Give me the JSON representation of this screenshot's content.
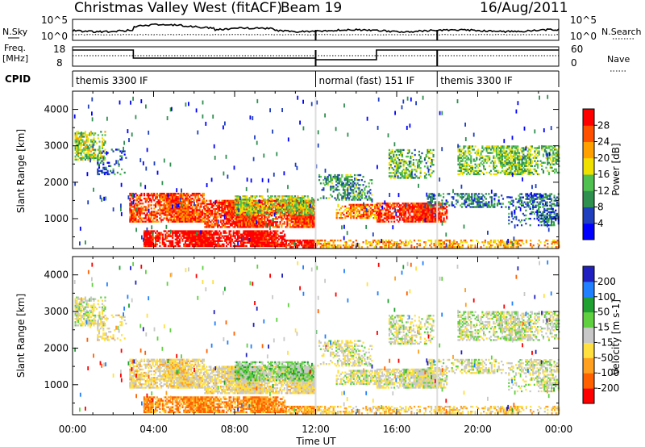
{
  "header": {
    "title": "Christmas Valley West (fitACF)",
    "beam": "Beam 19",
    "date": "16/Aug/2011"
  },
  "side_labels": {
    "nsky": "N.Sky",
    "freq_line1": "Freq.",
    "freq_line2": "[MHz]",
    "cpid": "CPID",
    "nsearch": "N.Search",
    "nave": "Nave"
  },
  "noise_panel": {
    "left_ticks": [
      "10^5",
      "10^0"
    ],
    "right_ticks": [
      "10^5",
      "10^0"
    ]
  },
  "freq_panel": {
    "left_ticks": [
      "18",
      "8"
    ],
    "right_ticks": [
      "60",
      "0"
    ]
  },
  "cpid_segments": [
    {
      "label": "themis 3300 IF",
      "start_hr": 0,
      "end_hr": 12
    },
    {
      "label": "normal (fast) 151 IF",
      "start_hr": 12,
      "end_hr": 18
    },
    {
      "label": "themis 3300 IF",
      "start_hr": 18,
      "end_hr": 24
    }
  ],
  "colors": {
    "power": [
      "#0000ff",
      "#1f3fbf",
      "#2f8f4f",
      "#50c050",
      "#f0e000",
      "#ffa000",
      "#ff5000",
      "#ff0000"
    ],
    "velocity": [
      "#2020c0",
      "#2080ff",
      "#20a030",
      "#60d040",
      "#c8c8c8",
      "#ffe040",
      "#ffa020",
      "#ff6000",
      "#ff0000"
    ]
  },
  "chart_data": [
    {
      "type": "heatmap",
      "panel": "power",
      "ylabel": "Slant Range [km]",
      "yticks": [
        "1000",
        "2000",
        "3000",
        "4000"
      ],
      "ylim": [
        180,
        4500
      ],
      "colorbar_label": "Power [dB]",
      "colorbar_ticks": [
        "4",
        "8",
        "12",
        "16",
        "20",
        "24",
        "28"
      ]
    },
    {
      "type": "heatmap",
      "panel": "velocity",
      "ylabel": "Slant Range [km]",
      "yticks": [
        "1000",
        "2000",
        "3000",
        "4000"
      ],
      "ylim": [
        180,
        4500
      ],
      "colorbar_label": "Velocity [m s-1]",
      "colorbar_ticks": [
        "200",
        "100",
        "50",
        "15",
        "-15",
        "-50",
        "-100",
        "-200"
      ],
      "xlabel": "Time UT",
      "xticks": [
        "00:00",
        "04:00",
        "08:00",
        "12:00",
        "16:00",
        "20:00",
        "00:00"
      ],
      "xlim": [
        0,
        24
      ]
    }
  ]
}
